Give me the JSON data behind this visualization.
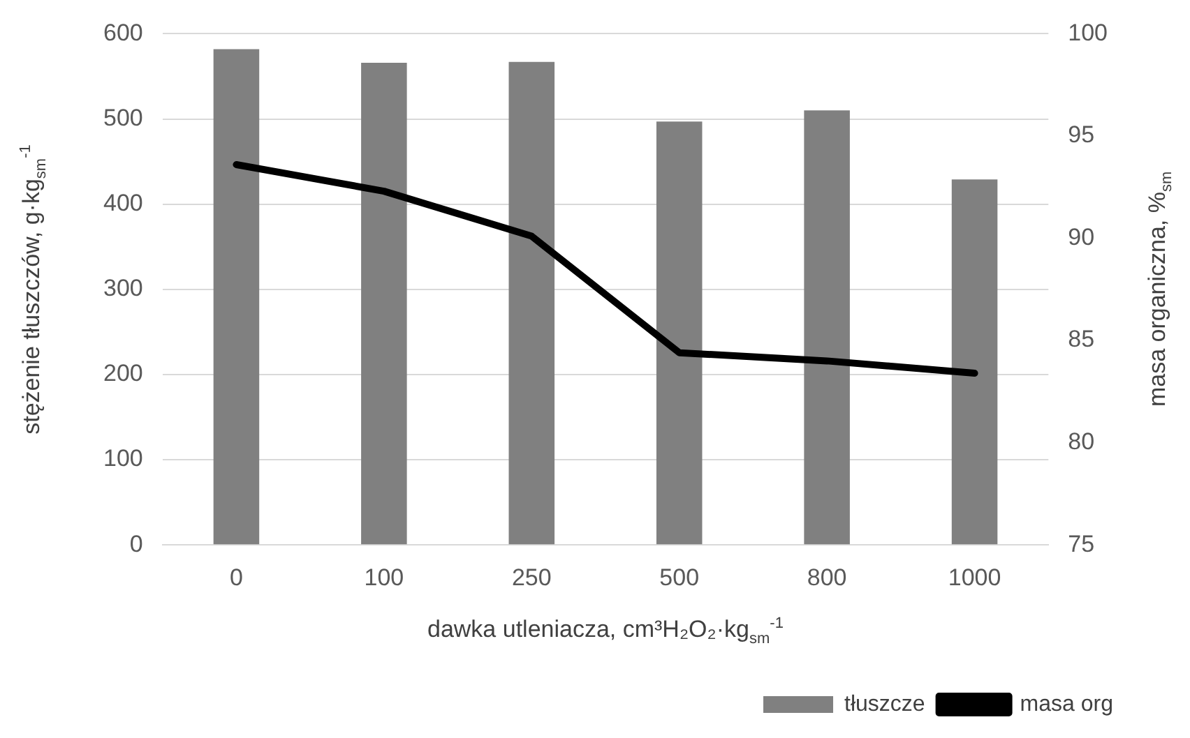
{
  "chart_data": {
    "type": "bar",
    "categories": [
      "0",
      "100",
      "250",
      "500",
      "800",
      "1000"
    ],
    "series": [
      {
        "name": "tłuszcze",
        "color": "#808080",
        "values": [
          582,
          566,
          567,
          497,
          510,
          429
        ]
      },
      {
        "name": "masa org",
        "type": "line",
        "axis": "y2",
        "color": "#000000",
        "values": [
          93.6,
          92.3,
          90.1,
          84.4,
          84.0,
          83.4
        ]
      }
    ],
    "xlabel": "dawka utleniacza, cm³H₂O₂·kg$_{sm}$$^{-1}$",
    "ylabel": "stężenie tłuszczów, g·kg$_{sm}$$^{-1}$",
    "y2label": "masa organiczna, %$_{sm}$",
    "ylim": [
      0,
      600
    ],
    "yticks": [
      0,
      100,
      200,
      300,
      400,
      500,
      600
    ],
    "y2lim": [
      75,
      100
    ],
    "y2ticks": [
      75,
      80,
      85,
      90,
      95,
      100
    ],
    "grid": "y",
    "legend": "bottom right",
    "marker": "none",
    "line_style": "solid"
  }
}
